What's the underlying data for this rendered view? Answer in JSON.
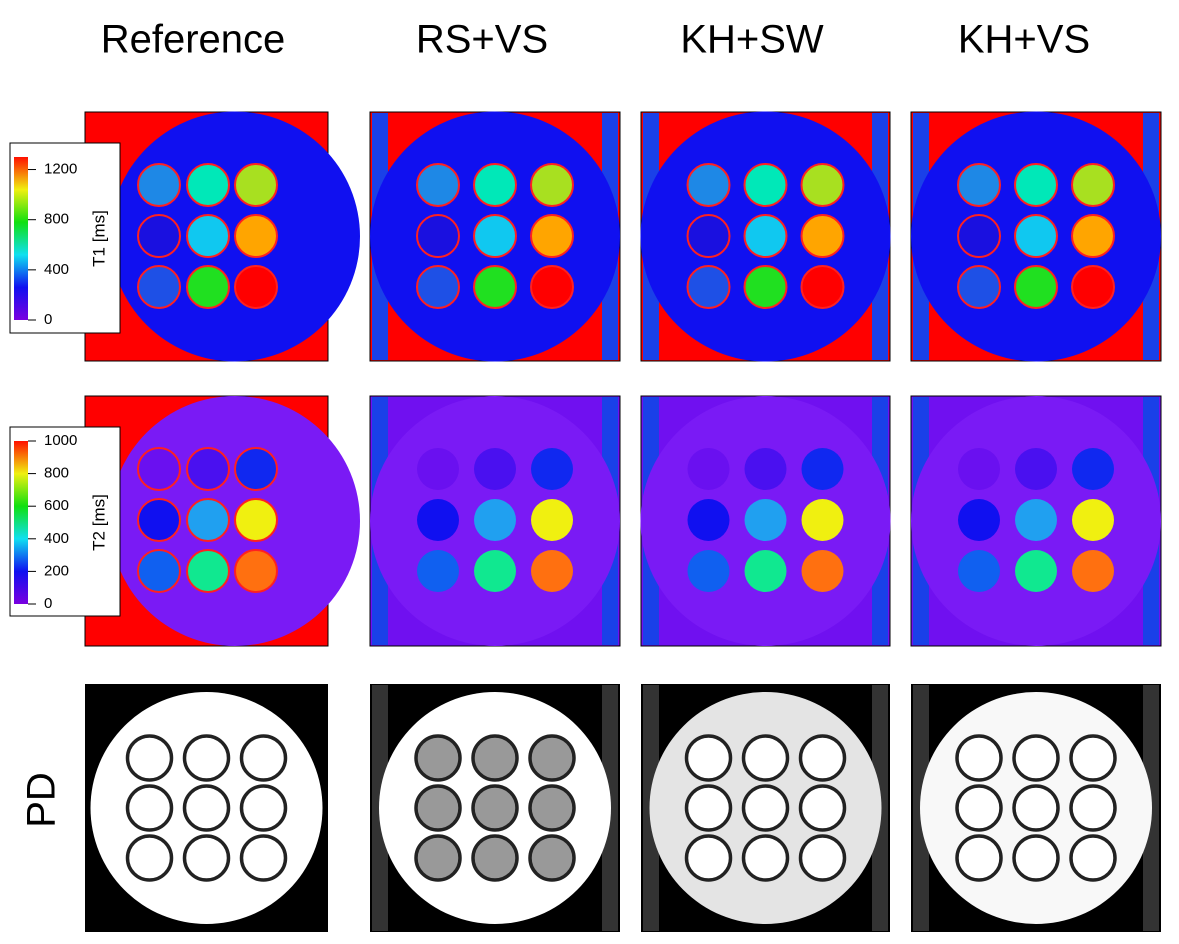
{
  "columns": [
    "Reference",
    "RS+VS",
    "KH+SW",
    "KH+VS"
  ],
  "row_label": "PD",
  "colorbars": [
    {
      "label": "T1 [ms]",
      "range": [
        0,
        1300
      ],
      "ticks": [
        0,
        400,
        800,
        1200
      ]
    },
    {
      "label": "T2 [ms]",
      "range": [
        0,
        1000
      ],
      "ticks": [
        0,
        200,
        400,
        600,
        800,
        1000
      ]
    }
  ]
}
